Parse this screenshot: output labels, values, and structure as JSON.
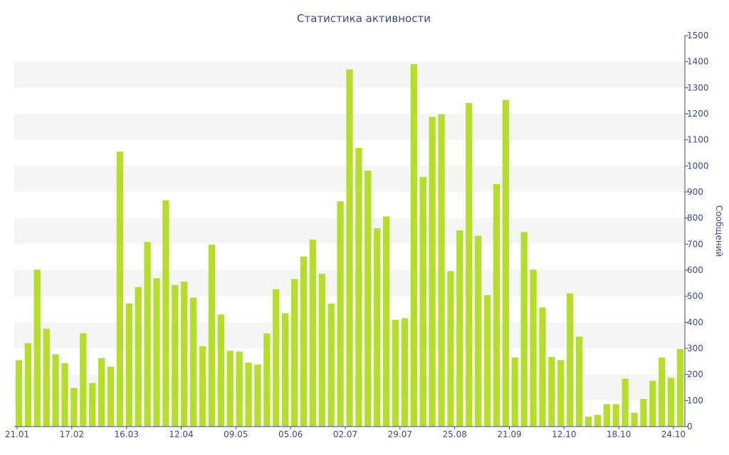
{
  "chart_data": {
    "type": "bar",
    "title": "Статистика активности",
    "xlabel": "",
    "ylabel": "Сообщений",
    "ylim": [
      0,
      1500
    ],
    "yticks": [
      0,
      100,
      200,
      300,
      400,
      500,
      600,
      700,
      800,
      900,
      1000,
      1100,
      1200,
      1300,
      1400,
      1500
    ],
    "xtick_labels": [
      "21.01",
      "17.02",
      "16.03",
      "12.04",
      "09.05",
      "05.06",
      "02.07",
      "29.07",
      "25.08",
      "21.09",
      "12.10",
      "18.10",
      "24.10"
    ],
    "grid": "alternating horizontal bands",
    "bar_color": "#b5de2b",
    "band_color": "#f5f5f5",
    "axis_color": "#3c4a8a",
    "values": [
      255,
      320,
      602,
      375,
      277,
      243,
      148,
      358,
      167,
      263,
      230,
      1055,
      472,
      535,
      708,
      569,
      868,
      543,
      556,
      495,
      308,
      698,
      430,
      291,
      288,
      245,
      238,
      357,
      527,
      435,
      566,
      652,
      717,
      586,
      472,
      864,
      1370,
      1069,
      982,
      761,
      806,
      410,
      416,
      1390,
      958,
      1188,
      1198,
      596,
      753,
      1241,
      732,
      504,
      930,
      1253,
      265,
      746,
      602,
      457,
      267,
      255,
      511,
      345,
      38,
      45,
      86,
      86,
      183,
      53,
      106,
      176,
      265,
      187,
      298
    ]
  }
}
